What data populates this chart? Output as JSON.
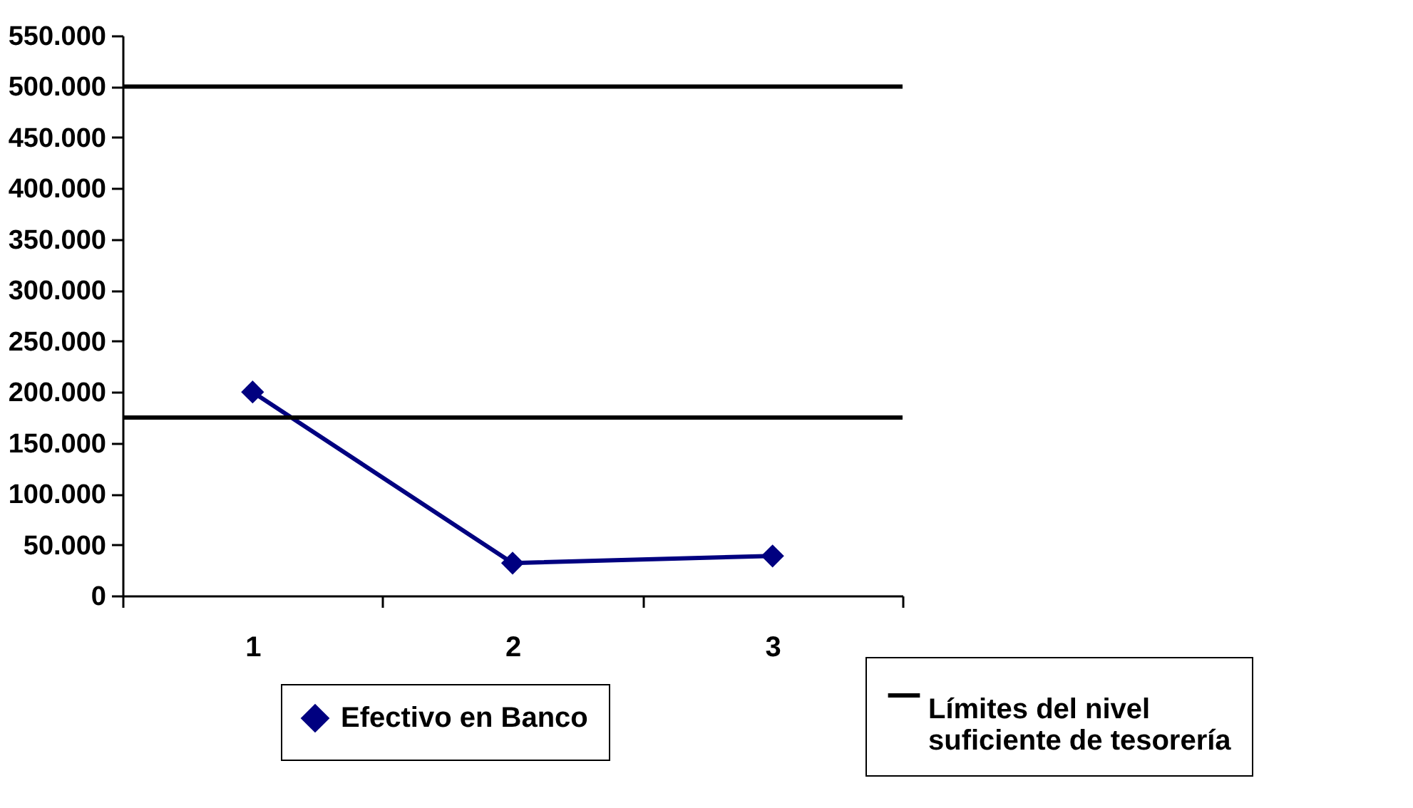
{
  "chart_data": {
    "type": "line",
    "categories": [
      "1",
      "2",
      "3"
    ],
    "series": [
      {
        "name": "Efectivo en Banco",
        "color": "#000080",
        "values": [
          200000,
          32000,
          39000
        ]
      }
    ],
    "marker": "diamond",
    "ylim": [
      0,
      550000
    ],
    "yticks": [
      {
        "value": 0,
        "label": "0"
      },
      {
        "value": 50000,
        "label": "50.000"
      },
      {
        "value": 100000,
        "label": "100.000"
      },
      {
        "value": 150000,
        "label": "150.000"
      },
      {
        "value": 200000,
        "label": "200.000"
      },
      {
        "value": 250000,
        "label": "250.000"
      },
      {
        "value": 300000,
        "label": "300.000"
      },
      {
        "value": 350000,
        "label": "350.000"
      },
      {
        "value": 400000,
        "label": "400.000"
      },
      {
        "value": 450000,
        "label": "450.000"
      },
      {
        "value": 500000,
        "label": "500.000"
      },
      {
        "value": 550000,
        "label": "550.000"
      }
    ],
    "ref_lines": [
      {
        "axis": "y",
        "value": 500000,
        "label": "Límites del nivel suficiente de tesorería",
        "color": "#000000"
      },
      {
        "axis": "y",
        "value": 175000,
        "color": "#000000"
      }
    ],
    "grid": false,
    "legend": "bottom"
  }
}
